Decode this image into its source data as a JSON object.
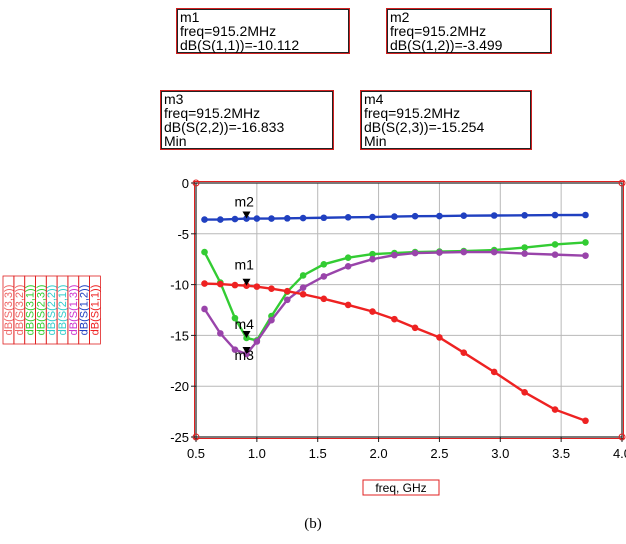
{
  "marker_readouts": [
    {
      "name": "m1",
      "freq": "freq=915.2MHz",
      "value": "dB(S(1,1))=-10.112",
      "extra": ""
    },
    {
      "name": "m2",
      "freq": "freq=915.2MHz",
      "value": "dB(S(1,2))=-3.499",
      "extra": ""
    },
    {
      "name": "m3",
      "freq": "freq=915.2MHz",
      "value": "dB(S(2,2))=-16.833",
      "extra": "Min"
    },
    {
      "name": "m4",
      "freq": "freq=915.2MHz",
      "value": "dB(S(2,3))=-15.254",
      "extra": "Min"
    }
  ],
  "caption": "(b)",
  "chart_data": {
    "type": "line",
    "xlabel": "freq, GHz",
    "xlim": [
      0.5,
      4.0
    ],
    "ylim": [
      -25,
      0
    ],
    "xticks": [
      "0.5",
      "1.0",
      "1.5",
      "2.0",
      "2.5",
      "3.0",
      "3.5",
      "4.0"
    ],
    "yticks": [
      "0",
      "-5",
      "-10",
      "-15",
      "-20",
      "-25"
    ],
    "x": [
      0.57,
      0.7,
      0.82,
      0.915,
      1.0,
      1.12,
      1.25,
      1.38,
      1.55,
      1.75,
      1.95,
      2.13,
      2.3,
      2.5,
      2.7,
      2.95,
      3.2,
      3.45,
      3.7
    ],
    "series": [
      {
        "name": "dB(S(1,2))",
        "color": "#2040c0",
        "values": [
          -3.6,
          -3.6,
          -3.55,
          -3.5,
          -3.5,
          -3.5,
          -3.48,
          -3.45,
          -3.42,
          -3.38,
          -3.35,
          -3.3,
          -3.27,
          -3.25,
          -3.22,
          -3.2,
          -3.18,
          -3.16,
          -3.15
        ]
      },
      {
        "name": "dB(S(2,3))",
        "color": "#33cc33",
        "values": [
          -6.8,
          -9.8,
          -13.3,
          -15.25,
          -15.5,
          -13.1,
          -10.7,
          -9.1,
          -8.0,
          -7.35,
          -7.0,
          -6.9,
          -6.8,
          -6.75,
          -6.7,
          -6.6,
          -6.35,
          -6.05,
          -5.85
        ]
      },
      {
        "name": "dB(S(2,2))",
        "color": "#9944aa",
        "values": [
          -12.4,
          -14.8,
          -16.4,
          -16.83,
          -15.6,
          -13.5,
          -11.5,
          -10.3,
          -9.2,
          -8.2,
          -7.5,
          -7.1,
          -6.9,
          -6.85,
          -6.8,
          -6.8,
          -6.95,
          -7.05,
          -7.15
        ]
      },
      {
        "name": "dB(S(1,1))",
        "color": "#ee2222",
        "values": [
          -9.9,
          -9.95,
          -10.05,
          -10.11,
          -10.2,
          -10.4,
          -10.65,
          -10.95,
          -11.4,
          -12.0,
          -12.65,
          -13.4,
          -14.25,
          -15.2,
          -16.7,
          -18.6,
          -20.6,
          -22.3,
          -23.4
        ]
      }
    ],
    "markers": [
      {
        "label": "m1",
        "series": "dB(S(1,1))",
        "x": 0.915,
        "y": -10.112
      },
      {
        "label": "m2",
        "series": "dB(S(1,2))",
        "x": 0.915,
        "y": -3.499
      },
      {
        "label": "m3",
        "series": "dB(S(2,2))",
        "x": 0.915,
        "y": -16.833
      },
      {
        "label": "m4",
        "series": "dB(S(2,3))",
        "x": 0.915,
        "y": -15.254
      }
    ],
    "legend": [
      {
        "text": "dB(S(3,3))",
        "color": "#ee6666"
      },
      {
        "text": "dB(S(3,2))",
        "color": "#ee6666"
      },
      {
        "text": "dB(S(3,1))",
        "color": "#33cc33"
      },
      {
        "text": "dB(S(2,3))",
        "color": "#33cc33"
      },
      {
        "text": "dB(S(2,2))",
        "color": "#33cccc"
      },
      {
        "text": "dB(S(2,1))",
        "color": "#33cccc"
      },
      {
        "text": "dB(S(1,3))",
        "color": "#cc33cc"
      },
      {
        "text": "dB(S(1,2))",
        "color": "#2040c0"
      },
      {
        "text": "dB(S(1,1))",
        "color": "#ee2222"
      }
    ],
    "legend_placement": "left, rotated vertical",
    "grid": true
  }
}
